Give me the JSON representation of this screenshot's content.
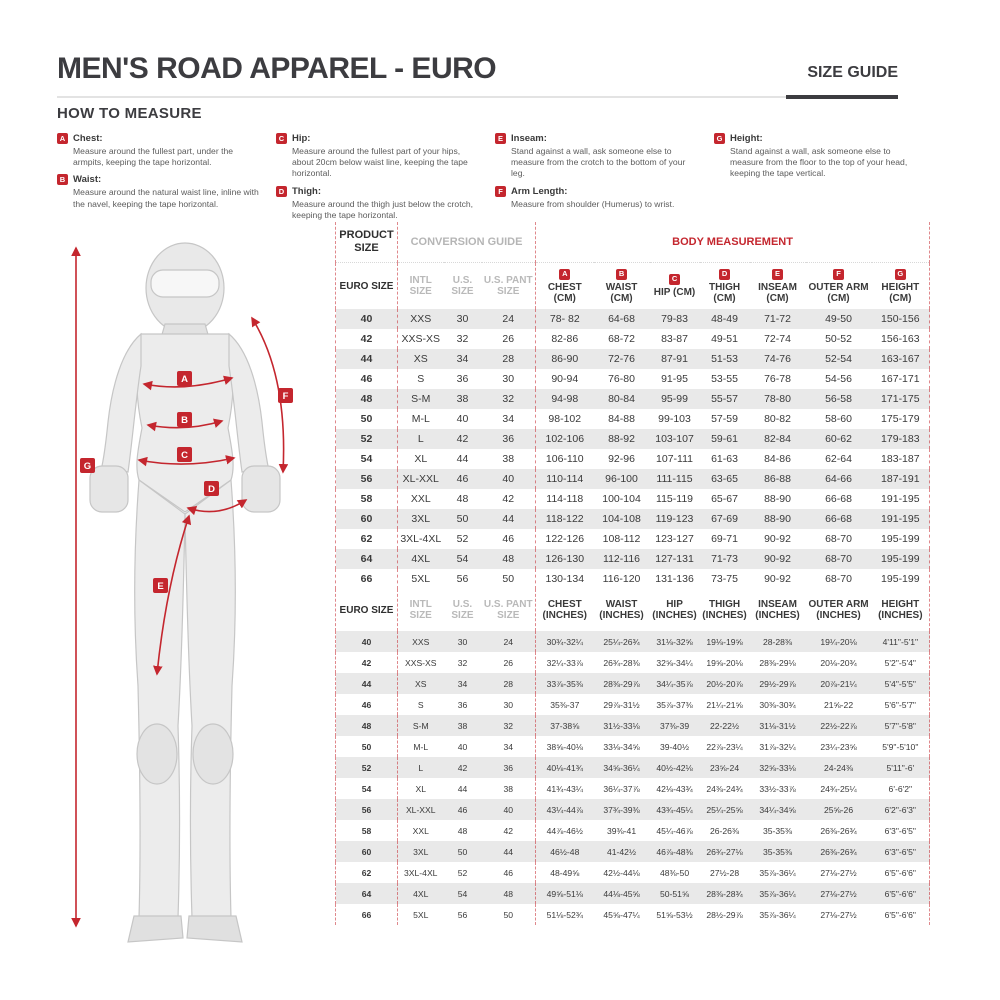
{
  "page": {
    "title": "MEN'S ROAD APPAREL - EURO",
    "size_guide_label": "SIZE GUIDE",
    "how_to_measure_title": "HOW TO MEASURE"
  },
  "colors": {
    "accent_red": "#c4262e",
    "stripe_gray": "#e9e9e9",
    "muted_gray": "#b9b9b9"
  },
  "how_to_measure": {
    "items": [
      {
        "letter": "A",
        "name": "Chest:",
        "desc": "Measure around the fullest part, under the armpits, keeping the tape horizontal."
      },
      {
        "letter": "B",
        "name": "Waist:",
        "desc": "Measure around the natural waist line, inline with the navel, keeping the tape horizontal."
      },
      {
        "letter": "C",
        "name": "Hip:",
        "desc": "Measure around the fullest part of your hips, about 20cm below waist line, keeping the tape horizontal."
      },
      {
        "letter": "D",
        "name": "Thigh:",
        "desc": "Measure around the thigh just below the crotch, keeping the tape horizontal."
      },
      {
        "letter": "E",
        "name": "Inseam:",
        "desc": "Stand against a wall, ask someone else to measure from the crotch to the bottom of your leg."
      },
      {
        "letter": "F",
        "name": "Arm Length:",
        "desc": "Measure from shoulder (Humerus) to wrist."
      },
      {
        "letter": "G",
        "name": "Height:",
        "desc": "Stand against a wall, ask someone else to measure from the floor to the top of your head, keeping the tape vertical."
      }
    ]
  },
  "figure": {
    "arrow_labels": [
      "A",
      "B",
      "C",
      "D",
      "E",
      "F",
      "G"
    ]
  },
  "table": {
    "group_headers": {
      "product": "PRODUCT SIZE",
      "conversion": "CONVERSION GUIDE",
      "body": "BODY MEASUREMENT"
    },
    "col_headers": {
      "euro": "EURO SIZE",
      "intl": "INTL SIZE",
      "us": "U.S. SIZE",
      "pant": "U.S. PANT SIZE"
    },
    "cm_headers": [
      {
        "letter": "A",
        "label": "CHEST (CM)"
      },
      {
        "letter": "B",
        "label": "WAIST (CM)"
      },
      {
        "letter": "C",
        "label": "HIP (CM)"
      },
      {
        "letter": "D",
        "label": "THIGH (CM)"
      },
      {
        "letter": "E",
        "label": "INSEAM (CM)"
      },
      {
        "letter": "F",
        "label": "OUTER ARM (CM)"
      },
      {
        "letter": "G",
        "label": "HEIGHT (CM)"
      }
    ],
    "inch_headers": [
      "CHEST (INCHES)",
      "WAIST (INCHES)",
      "HIP (INCHES)",
      "THIGH (INCHES)",
      "INSEAM (INCHES)",
      "OUTER ARM (INCHES)",
      "HEIGHT (INCHES)"
    ],
    "cm_rows": [
      [
        "40",
        "XXS",
        "30",
        "24",
        "78- 82",
        "64-68",
        "79-83",
        "48-49",
        "71-72",
        "49-50",
        "150-156"
      ],
      [
        "42",
        "XXS-XS",
        "32",
        "26",
        "82-86",
        "68-72",
        "83-87",
        "49-51",
        "72-74",
        "50-52",
        "156-163"
      ],
      [
        "44",
        "XS",
        "34",
        "28",
        "86-90",
        "72-76",
        "87-91",
        "51-53",
        "74-76",
        "52-54",
        "163-167"
      ],
      [
        "46",
        "S",
        "36",
        "30",
        "90-94",
        "76-80",
        "91-95",
        "53-55",
        "76-78",
        "54-56",
        "167-171"
      ],
      [
        "48",
        "S-M",
        "38",
        "32",
        "94-98",
        "80-84",
        "95-99",
        "55-57",
        "78-80",
        "56-58",
        "171-175"
      ],
      [
        "50",
        "M-L",
        "40",
        "34",
        "98-102",
        "84-88",
        "99-103",
        "57-59",
        "80-82",
        "58-60",
        "175-179"
      ],
      [
        "52",
        "L",
        "42",
        "36",
        "102-106",
        "88-92",
        "103-107",
        "59-61",
        "82-84",
        "60-62",
        "179-183"
      ],
      [
        "54",
        "XL",
        "44",
        "38",
        "106-110",
        "92-96",
        "107-111",
        "61-63",
        "84-86",
        "62-64",
        "183-187"
      ],
      [
        "56",
        "XL-XXL",
        "46",
        "40",
        "110-114",
        "96-100",
        "111-115",
        "63-65",
        "86-88",
        "64-66",
        "187-191"
      ],
      [
        "58",
        "XXL",
        "48",
        "42",
        "114-118",
        "100-104",
        "115-119",
        "65-67",
        "88-90",
        "66-68",
        "191-195"
      ],
      [
        "60",
        "3XL",
        "50",
        "44",
        "118-122",
        "104-108",
        "119-123",
        "67-69",
        "88-90",
        "66-68",
        "191-195"
      ],
      [
        "62",
        "3XL-4XL",
        "52",
        "46",
        "122-126",
        "108-112",
        "123-127",
        "69-71",
        "90-92",
        "68-70",
        "195-199"
      ],
      [
        "64",
        "4XL",
        "54",
        "48",
        "126-130",
        "112-116",
        "127-131",
        "71-73",
        "90-92",
        "68-70",
        "195-199"
      ],
      [
        "66",
        "5XL",
        "56",
        "50",
        "130-134",
        "116-120",
        "131-136",
        "73-75",
        "90-92",
        "68-70",
        "195-199"
      ]
    ],
    "inch_rows": [
      [
        "40",
        "XXS",
        "30",
        "24",
        "30¾-32¼",
        "25¼-26¾",
        "31⅛-32⅝",
        "19⅛-19⅝",
        "28-28⅜",
        "19¼-20⅛",
        "4'11\"-5'1\""
      ],
      [
        "42",
        "XXS-XS",
        "32",
        "26",
        "32¼-33⅞",
        "26¾-28⅜",
        "32⅝-34¼",
        "19⅝-20⅛",
        "28⅜-29⅛",
        "20⅛-20¾",
        "5'2\"-5'4\""
      ],
      [
        "44",
        "XS",
        "34",
        "28",
        "33⅞-35⅜",
        "28⅜-29⅞",
        "34¼-35⅞",
        "20½-20⅞",
        "29½-29⅞",
        "20⅞-21¼",
        "5'4\"-5'5\""
      ],
      [
        "46",
        "S",
        "36",
        "30",
        "35⅜-37",
        "29⅞-31½",
        "35⅞-37⅜",
        "21¼-21⅝",
        "30⅜-30¾",
        "21⅝-22",
        "5'6\"-5'7\""
      ],
      [
        "48",
        "S-M",
        "38",
        "32",
        "37-38⅝",
        "31½-33⅛",
        "37⅜-39",
        "22-22½",
        "31⅛-31½",
        "22½-22⅞",
        "5'7\"-5'8\""
      ],
      [
        "50",
        "M-L",
        "40",
        "34",
        "38⅝-40⅛",
        "33⅛-34⅝",
        "39-40½",
        "22⅞-23¼",
        "31⅞-32¼",
        "23¼-23⅝",
        "5'9\"-5'10\""
      ],
      [
        "52",
        "L",
        "42",
        "36",
        "40⅛-41¾",
        "34⅝-36¼",
        "40½-42⅛",
        "23⅝-24",
        "32⅝-33⅛",
        "24-24⅜",
        "5'11\"-6'"
      ],
      [
        "54",
        "XL",
        "44",
        "38",
        "41¾-43¼",
        "36¼-37⅞",
        "42⅛-43¾",
        "24⅜-24¾",
        "33½-33⅞",
        "24¾-25¼",
        "6'-6'2\""
      ],
      [
        "56",
        "XL-XXL",
        "46",
        "40",
        "43¼-44⅞",
        "37¾-39⅜",
        "43¾-45¼",
        "25¼-25⅝",
        "34¼-34⅝",
        "25⅝-26",
        "6'2\"-6'3\""
      ],
      [
        "58",
        "XXL",
        "48",
        "42",
        "44⅞-46½",
        "39⅜-41",
        "45¼-46⅞",
        "26-26⅜",
        "35-35⅜",
        "26⅜-26¾",
        "6'3\"-6'5\""
      ],
      [
        "60",
        "3XL",
        "50",
        "44",
        "46½-48",
        "41-42½",
        "46⅞-48⅜",
        "26¾-27⅛",
        "35-35⅜",
        "26⅜-26¾",
        "6'3\"-6'5\""
      ],
      [
        "62",
        "3XL-4XL",
        "52",
        "46",
        "48-49⅝",
        "42½-44⅛",
        "48⅜-50",
        "27½-28",
        "35⅞-36¼",
        "27⅛-27½",
        "6'5\"-6'6\""
      ],
      [
        "64",
        "4XL",
        "54",
        "48",
        "49⅝-51⅛",
        "44⅛-45⅝",
        "50-51⅝",
        "28⅜-28¾",
        "35⅞-36¼",
        "27⅛-27½",
        "6'5\"-6'6\""
      ],
      [
        "66",
        "5XL",
        "56",
        "50",
        "51⅛-52¾",
        "45⅝-47¼",
        "51⅝-53½",
        "28½-29⅞",
        "35⅞-36¼",
        "27⅛-27½",
        "6'5\"-6'6\""
      ]
    ]
  }
}
